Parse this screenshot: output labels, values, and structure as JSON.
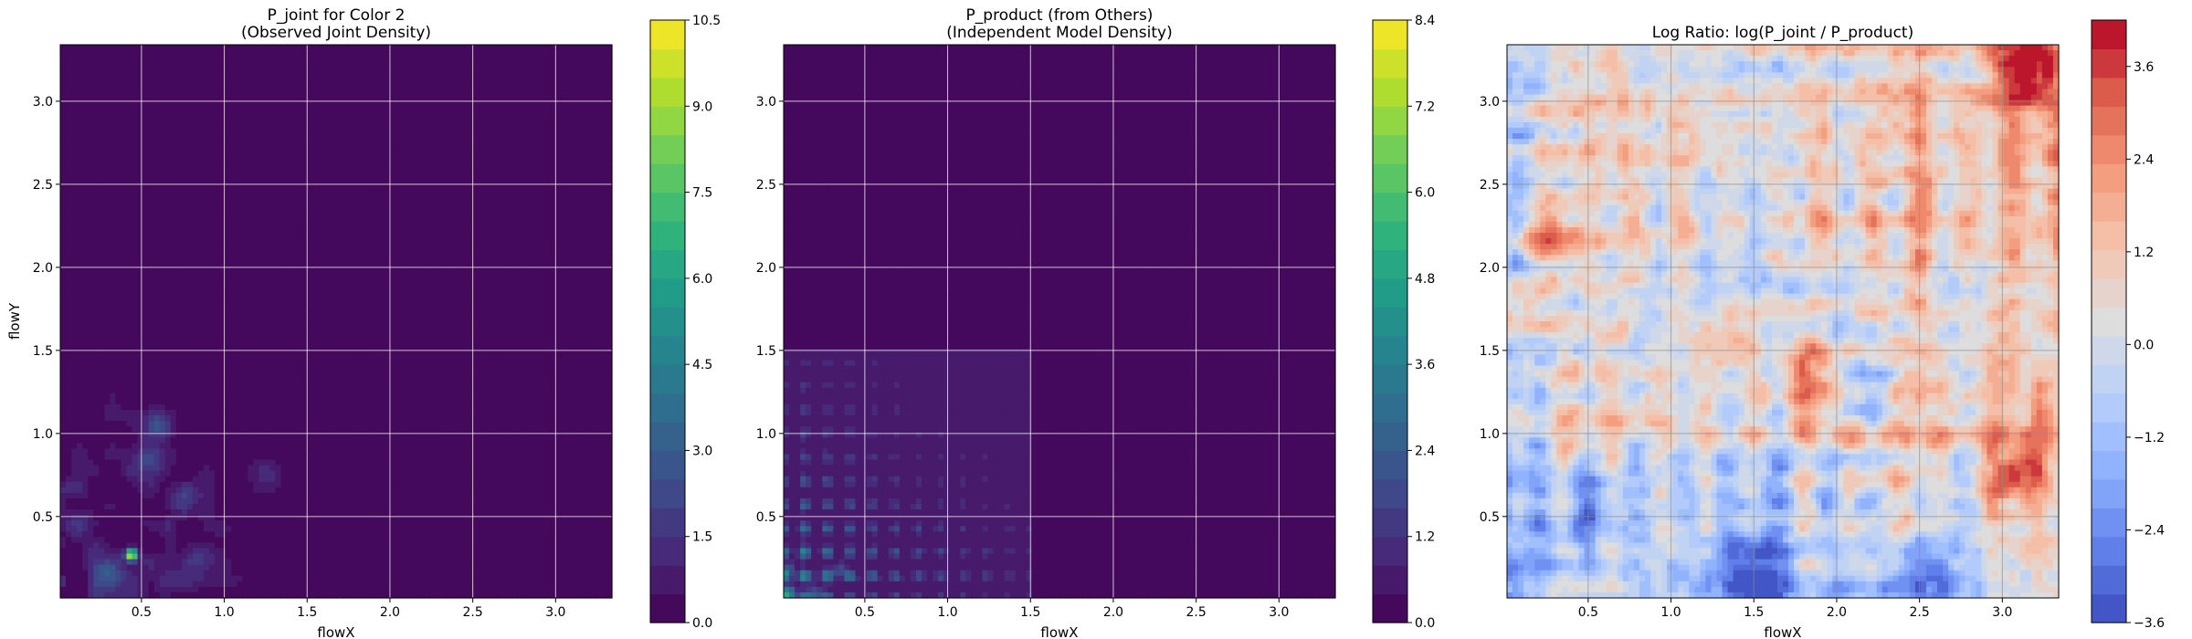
{
  "chart_data": [
    {
      "type": "heatmap",
      "title": "P_joint for Color 2",
      "subtitle": "(Observed Joint Density)",
      "xlabel": "flowX",
      "ylabel": "flowY",
      "xlim": [
        0.01,
        3.34
      ],
      "ylim": [
        0.01,
        3.34
      ],
      "xticks": [
        "0.5",
        "1.0",
        "1.5",
        "2.0",
        "2.5",
        "3.0"
      ],
      "yticks": [
        "0.5",
        "1.0",
        "1.5",
        "2.0",
        "2.5",
        "3.0"
      ],
      "grid": true,
      "colormap": "viridis",
      "colorbar": {
        "min": 0.0,
        "max": 10.5,
        "ticks": [
          "0.0",
          "1.5",
          "3.0",
          "4.5",
          "6.0",
          "7.5",
          "9.0",
          "10.5"
        ],
        "levels": 21
      },
      "background_value": 0.2,
      "peaks": [
        {
          "x": 0.44,
          "y": 0.27,
          "value": 10.5
        },
        {
          "x": 0.6,
          "y": 1.05,
          "value": 2.5
        },
        {
          "x": 0.3,
          "y": 0.15,
          "value": 2.2
        },
        {
          "x": 0.75,
          "y": 0.6,
          "value": 1.8
        },
        {
          "x": 0.12,
          "y": 0.45,
          "value": 1.5
        },
        {
          "x": 0.55,
          "y": 0.85,
          "value": 1.6
        },
        {
          "x": 1.25,
          "y": 0.75,
          "value": 1.2
        },
        {
          "x": 0.85,
          "y": 0.25,
          "value": 1.4
        }
      ]
    },
    {
      "type": "heatmap",
      "title": "P_product (from Others)",
      "subtitle": "(Independent Model Density)",
      "xlabel": "flowX",
      "ylabel": "",
      "xlim": [
        0.01,
        3.34
      ],
      "ylim": [
        0.01,
        3.34
      ],
      "xticks": [
        "0.5",
        "1.0",
        "1.5",
        "2.0",
        "2.5",
        "3.0"
      ],
      "yticks": [
        "0.5",
        "1.0",
        "1.5",
        "2.0",
        "2.5",
        "3.0"
      ],
      "grid": true,
      "colormap": "viridis",
      "colorbar": {
        "min": 0.0,
        "max": 8.4,
        "ticks": [
          "0.0",
          "1.2",
          "2.4",
          "3.6",
          "4.8",
          "6.0",
          "7.2",
          "8.4"
        ],
        "levels": 21
      },
      "support_region": {
        "x": [
          0.01,
          1.52
        ],
        "y": [
          0.01,
          1.52
        ]
      },
      "peaks": [
        {
          "x": 0.04,
          "y": 0.04,
          "value": 8.4
        },
        {
          "x": 0.2,
          "y": 0.04,
          "value": 4.8
        },
        {
          "x": 0.04,
          "y": 0.18,
          "value": 4.2
        },
        {
          "x": 0.35,
          "y": 0.18,
          "value": 3.6
        }
      ]
    },
    {
      "type": "heatmap",
      "title": "Log Ratio: log(P_joint / P_product)",
      "xlabel": "flowX",
      "ylabel": "",
      "xlim": [
        0.01,
        3.34
      ],
      "ylim": [
        0.01,
        3.34
      ],
      "xticks": [
        "0.5",
        "1.0",
        "1.5",
        "2.0",
        "2.5",
        "3.0"
      ],
      "yticks": [
        "0.5",
        "1.0",
        "1.5",
        "2.0",
        "2.5",
        "3.0"
      ],
      "grid": true,
      "colormap": "coolwarm",
      "colorbar": {
        "min": -3.6,
        "max": 4.2,
        "ticks": [
          "−3.6",
          "−2.4",
          "−1.2",
          "0.0",
          "1.2",
          "2.4",
          "3.6"
        ],
        "levels": 21
      },
      "features": [
        {
          "x": 3.15,
          "y": 3.2,
          "value": 3.8
        },
        {
          "x": 3.1,
          "y": 0.75,
          "value": 3.0
        },
        {
          "x": 1.85,
          "y": 1.35,
          "value": 2.4
        },
        {
          "x": 0.25,
          "y": 2.2,
          "value": 2.2
        },
        {
          "x": 0.06,
          "y": 1.75,
          "value": 2.6
        },
        {
          "x": 1.35,
          "y": 1.6,
          "value": 2.0
        },
        {
          "x": 1.5,
          "y": 0.15,
          "value": -3.4
        },
        {
          "x": 2.5,
          "y": 0.15,
          "value": -3.0
        },
        {
          "x": 0.5,
          "y": 0.5,
          "value": -2.2
        },
        {
          "x": 2.2,
          "y": 1.25,
          "value": -1.8
        }
      ]
    }
  ]
}
